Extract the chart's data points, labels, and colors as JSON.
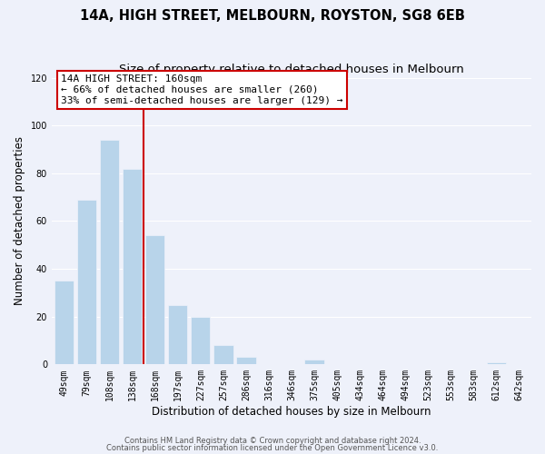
{
  "title": "14A, HIGH STREET, MELBOURN, ROYSTON, SG8 6EB",
  "subtitle": "Size of property relative to detached houses in Melbourn",
  "xlabel": "Distribution of detached houses by size in Melbourn",
  "ylabel": "Number of detached properties",
  "footnote1": "Contains HM Land Registry data © Crown copyright and database right 2024.",
  "footnote2": "Contains public sector information licensed under the Open Government Licence v3.0.",
  "bar_labels": [
    "49sqm",
    "79sqm",
    "108sqm",
    "138sqm",
    "168sqm",
    "197sqm",
    "227sqm",
    "257sqm",
    "286sqm",
    "316sqm",
    "346sqm",
    "375sqm",
    "405sqm",
    "434sqm",
    "464sqm",
    "494sqm",
    "523sqm",
    "553sqm",
    "583sqm",
    "612sqm",
    "642sqm"
  ],
  "bar_values": [
    35,
    69,
    94,
    82,
    54,
    25,
    20,
    8,
    3,
    0,
    0,
    2,
    0,
    0,
    0,
    0,
    0,
    0,
    0,
    1,
    0
  ],
  "bar_color": "#b8d4ea",
  "highlight_line_index": 4,
  "highlight_line_color": "#cc0000",
  "annotation_line1": "14A HIGH STREET: 160sqm",
  "annotation_line2": "← 66% of detached houses are smaller (260)",
  "annotation_line3": "33% of semi-detached houses are larger (129) →",
  "annotation_box_color": "#ffffff",
  "annotation_box_edge": "#cc0000",
  "ylim": [
    0,
    120
  ],
  "yticks": [
    0,
    20,
    40,
    60,
    80,
    100,
    120
  ],
  "bg_color": "#eef1fa",
  "plot_bg_color": "#eef1fa",
  "grid_color": "#ffffff",
  "title_fontsize": 10.5,
  "subtitle_fontsize": 9.5,
  "axis_label_fontsize": 8.5,
  "tick_fontsize": 7,
  "annotation_fontsize": 8,
  "footnote_fontsize": 6
}
